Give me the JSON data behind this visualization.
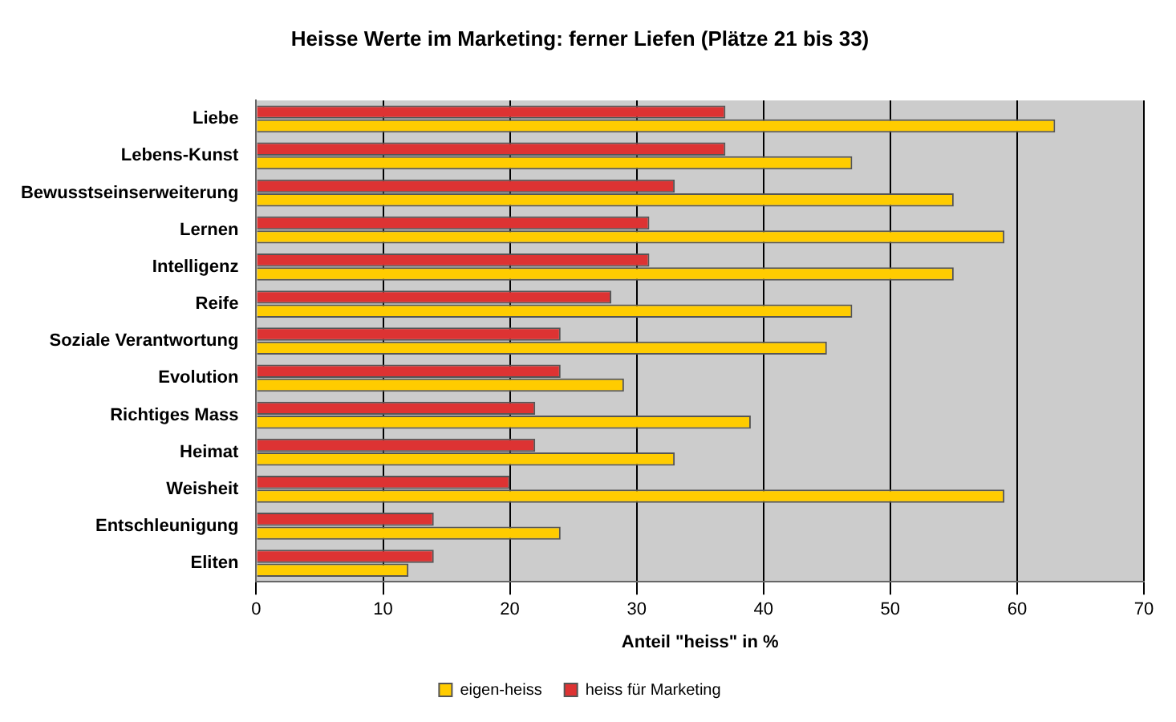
{
  "chart_data": {
    "type": "bar",
    "orientation": "horizontal",
    "title": "Heisse Werte im Marketing: ferner Liefen (Plätze 21 bis 33)",
    "xlabel": "Anteil \"heiss\" in %",
    "categories": [
      "Liebe",
      "Lebens-Kunst",
      "Bewusstseinserweiterung",
      "Lernen",
      "Intelligenz",
      "Reife",
      "Soziale Verantwortung",
      "Evolution",
      "Richtiges Mass",
      "Heimat",
      "Weisheit",
      "Entschleunigung",
      "Eliten"
    ],
    "series": [
      {
        "name": "heiss für Marketing",
        "color": "#dd3333",
        "values": [
          37,
          37,
          33,
          31,
          31,
          28,
          24,
          24,
          22,
          22,
          20,
          14,
          14
        ]
      },
      {
        "name": "eigen-heiss",
        "color": "#ffcc00",
        "values": [
          63,
          47,
          55,
          59,
          55,
          47,
          45,
          29,
          39,
          33,
          59,
          24,
          12
        ]
      }
    ],
    "xlim": [
      0,
      70
    ],
    "xticks": [
      0,
      10,
      20,
      30,
      40,
      50,
      60,
      70
    ],
    "grid": "x",
    "legend": "bottom"
  }
}
